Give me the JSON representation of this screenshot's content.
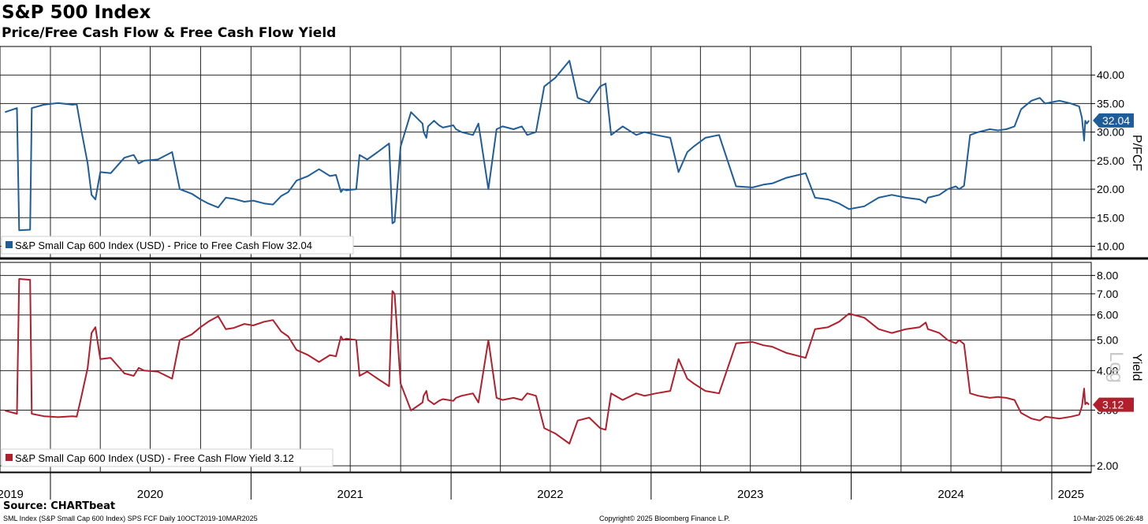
{
  "title": "S&P 500 Index",
  "subtitle": "Price/Free Cash Flow & Free Cash Flow Yield",
  "source": "Source: CHARTbeat",
  "footer": {
    "left": "SML Index (S&P Small Cap 600 Index) SPS FCF  Daily 10OCT2019-10MAR2025",
    "center": "Copyright© 2025 Bloomberg Finance L.P.",
    "right": "10-Mar-2025 06:26:48"
  },
  "chart_data": [
    {
      "type": "line",
      "title": "",
      "ylabel": "P/FCF",
      "ylim": [
        8,
        45
      ],
      "yticks": [
        "10.00",
        "15.00",
        "20.00",
        "25.00",
        "30.00",
        "35.00",
        "40.00"
      ],
      "last_value_label": "32.04",
      "color": "#1f5d9a",
      "series": [
        {
          "name": "S&P Small Cap 600 Index (USD) - Price to Free Cash Flow 32.04",
          "x": [
            "2019-10-10",
            "2019-11-01",
            "2019-11-05",
            "2019-11-25",
            "2019-11-28",
            "2019-12-20",
            "2020-01-15",
            "2020-02-10",
            "2020-02-18",
            "2020-02-26",
            "2020-03-09",
            "2020-03-16",
            "2020-03-23",
            "2020-04-01",
            "2020-04-20",
            "2020-05-15",
            "2020-06-01",
            "2020-06-10",
            "2020-06-20",
            "2020-07-15",
            "2020-08-10",
            "2020-08-24",
            "2020-09-15",
            "2020-10-01",
            "2020-10-15",
            "2020-11-02",
            "2020-11-16",
            "2020-12-01",
            "2020-12-20",
            "2021-01-05",
            "2021-01-25",
            "2021-02-10",
            "2021-02-25",
            "2021-03-10",
            "2021-03-25",
            "2021-04-15",
            "2021-05-05",
            "2021-05-25",
            "2021-06-05",
            "2021-06-14",
            "2021-06-18",
            "2021-06-24",
            "2021-07-12",
            "2021-07-18",
            "2021-08-01",
            "2021-08-20",
            "2021-09-10",
            "2021-09-16",
            "2021-09-20",
            "2021-10-01",
            "2021-10-20",
            "2021-11-10",
            "2021-11-12",
            "2021-11-17",
            "2021-11-20",
            "2021-12-01",
            "2021-12-10",
            "2021-12-17",
            "2022-01-05",
            "2022-01-10",
            "2022-01-20",
            "2022-02-10",
            "2022-02-20",
            "2022-03-10",
            "2022-03-25",
            "2022-04-05",
            "2022-04-25",
            "2022-05-10",
            "2022-05-20",
            "2022-06-05",
            "2022-06-20",
            "2022-07-10",
            "2022-08-05",
            "2022-08-20",
            "2022-09-10",
            "2022-09-30",
            "2022-10-10",
            "2022-10-20",
            "2022-11-10",
            "2022-12-05",
            "2022-12-20",
            "2023-01-10",
            "2023-02-05",
            "2023-02-20",
            "2023-03-08",
            "2023-03-20",
            "2023-04-10",
            "2023-05-05",
            "2023-06-05",
            "2023-07-05",
            "2023-07-25",
            "2023-08-10",
            "2023-09-05",
            "2023-10-10",
            "2023-10-27",
            "2023-11-20",
            "2023-12-10",
            "2023-12-28",
            "2024-01-25",
            "2024-02-20",
            "2024-03-15",
            "2024-04-10",
            "2024-05-05",
            "2024-05-16",
            "2024-05-20",
            "2024-06-10",
            "2024-06-25",
            "2024-07-10",
            "2024-07-16",
            "2024-07-25",
            "2024-08-05",
            "2024-08-20",
            "2024-09-10",
            "2024-09-25",
            "2024-10-10",
            "2024-10-25",
            "2024-11-06",
            "2024-11-25",
            "2024-12-10",
            "2024-12-20",
            "2025-01-15",
            "2025-02-05",
            "2025-02-20",
            "2025-02-25",
            "2025-03-01",
            "2025-03-03",
            "2025-03-06",
            "2025-03-10"
          ],
          "values": [
            33.5,
            34.2,
            12.8,
            12.9,
            34.2,
            34.8,
            35.1,
            34.8,
            34.9,
            30.5,
            24.5,
            19.0,
            18.2,
            23.0,
            22.8,
            25.5,
            26.0,
            24.5,
            25.0,
            25.2,
            26.5,
            20.0,
            19.2,
            18.2,
            17.5,
            16.8,
            18.5,
            18.3,
            17.8,
            18.0,
            17.5,
            17.3,
            18.8,
            19.5,
            21.5,
            22.3,
            23.5,
            22.3,
            22.5,
            19.5,
            20.0,
            19.8,
            20.0,
            26.0,
            25.2,
            26.5,
            28.0,
            14.0,
            14.3,
            27.5,
            33.5,
            31.5,
            30.0,
            29.0,
            31.0,
            32.0,
            31.2,
            30.8,
            31.2,
            30.5,
            30.0,
            29.5,
            31.5,
            20.0,
            30.5,
            31.0,
            30.5,
            31.0,
            29.5,
            30.0,
            38.0,
            39.5,
            42.5,
            36.0,
            35.2,
            38.0,
            38.5,
            29.5,
            31.0,
            29.5,
            30.0,
            29.5,
            29.0,
            23.0,
            26.5,
            27.5,
            29.0,
            29.5,
            20.5,
            20.3,
            20.8,
            21.0,
            22.0,
            22.8,
            18.5,
            18.2,
            17.5,
            16.5,
            17.0,
            18.5,
            19.0,
            18.5,
            18.2,
            17.6,
            18.5,
            19.0,
            20.0,
            20.5,
            20.0,
            20.6,
            29.5,
            30.0,
            30.5,
            30.3,
            30.5,
            31.0,
            34.0,
            35.5,
            36.0,
            35.0,
            35.5,
            35.0,
            34.5,
            32.5,
            28.5,
            32.0,
            31.5,
            32.04
          ]
        }
      ]
    },
    {
      "type": "line",
      "title": "",
      "ylabel": "Yield",
      "scale": "log",
      "scale_watermark": "Log",
      "ylim": [
        1.9,
        8.8
      ],
      "yticks": [
        "2.00",
        "3.00",
        "4.00",
        "5.00",
        "6.00",
        "7.00",
        "8.00"
      ],
      "last_value_label": "3.12",
      "color": "#b11f2c",
      "series": [
        {
          "name": "S&P Small Cap 600 Index (USD) - Free Cash Flow Yield 3.12",
          "x": [
            "2019-10-10",
            "2019-11-01",
            "2019-11-05",
            "2019-11-25",
            "2019-11-28",
            "2019-12-20",
            "2020-01-15",
            "2020-02-10",
            "2020-02-18",
            "2020-02-26",
            "2020-03-09",
            "2020-03-16",
            "2020-03-23",
            "2020-04-01",
            "2020-04-20",
            "2020-05-15",
            "2020-06-01",
            "2020-06-10",
            "2020-06-20",
            "2020-07-15",
            "2020-08-10",
            "2020-08-24",
            "2020-09-15",
            "2020-10-01",
            "2020-10-15",
            "2020-11-02",
            "2020-11-16",
            "2020-12-01",
            "2020-12-20",
            "2021-01-05",
            "2021-01-25",
            "2021-02-10",
            "2021-02-25",
            "2021-03-10",
            "2021-03-25",
            "2021-04-15",
            "2021-05-05",
            "2021-05-25",
            "2021-06-05",
            "2021-06-14",
            "2021-06-18",
            "2021-06-24",
            "2021-07-12",
            "2021-07-18",
            "2021-08-01",
            "2021-08-20",
            "2021-09-10",
            "2021-09-16",
            "2021-09-20",
            "2021-10-01",
            "2021-10-20",
            "2021-11-10",
            "2021-11-12",
            "2021-11-17",
            "2021-11-20",
            "2021-12-01",
            "2021-12-10",
            "2021-12-17",
            "2022-01-05",
            "2022-01-10",
            "2022-01-20",
            "2022-02-10",
            "2022-02-20",
            "2022-03-10",
            "2022-03-25",
            "2022-04-05",
            "2022-04-25",
            "2022-05-10",
            "2022-05-20",
            "2022-06-05",
            "2022-06-20",
            "2022-07-10",
            "2022-08-05",
            "2022-08-20",
            "2022-09-10",
            "2022-09-30",
            "2022-10-10",
            "2022-10-20",
            "2022-11-10",
            "2022-12-05",
            "2022-12-20",
            "2023-01-10",
            "2023-02-05",
            "2023-02-20",
            "2023-03-08",
            "2023-03-20",
            "2023-04-10",
            "2023-05-05",
            "2023-06-05",
            "2023-07-05",
            "2023-07-25",
            "2023-08-10",
            "2023-09-05",
            "2023-10-10",
            "2023-10-27",
            "2023-11-20",
            "2023-12-10",
            "2023-12-28",
            "2024-01-25",
            "2024-02-20",
            "2024-03-15",
            "2024-04-10",
            "2024-05-05",
            "2024-05-16",
            "2024-05-20",
            "2024-06-10",
            "2024-06-25",
            "2024-07-10",
            "2024-07-16",
            "2024-07-25",
            "2024-08-05",
            "2024-08-20",
            "2024-09-10",
            "2024-09-25",
            "2024-10-10",
            "2024-10-25",
            "2024-11-06",
            "2024-11-25",
            "2024-12-10",
            "2024-12-20",
            "2025-01-15",
            "2025-02-05",
            "2025-02-20",
            "2025-02-25",
            "2025-03-01",
            "2025-03-03",
            "2025-03-06",
            "2025-03-10"
          ],
          "values": [
            2.99,
            2.92,
            7.8,
            7.75,
            2.92,
            2.87,
            2.85,
            2.87,
            2.86,
            3.28,
            4.08,
            5.26,
            5.49,
            4.35,
            4.39,
            3.92,
            3.85,
            4.08,
            4.0,
            3.97,
            3.77,
            5.0,
            5.21,
            5.49,
            5.71,
            5.95,
            5.41,
            5.46,
            5.62,
            5.56,
            5.71,
            5.78,
            5.32,
            5.13,
            4.65,
            4.48,
            4.26,
            4.48,
            4.44,
            5.13,
            5.0,
            5.05,
            5.0,
            3.85,
            3.97,
            3.77,
            3.57,
            7.14,
            6.99,
            3.64,
            2.99,
            3.17,
            3.33,
            3.45,
            3.23,
            3.13,
            3.21,
            3.25,
            3.21,
            3.28,
            3.33,
            3.39,
            3.17,
            5.0,
            3.28,
            3.23,
            3.28,
            3.23,
            3.39,
            3.33,
            2.63,
            2.53,
            2.35,
            2.78,
            2.84,
            2.63,
            2.6,
            3.39,
            3.23,
            3.39,
            3.33,
            3.39,
            3.45,
            4.35,
            3.77,
            3.64,
            3.45,
            3.39,
            4.88,
            4.93,
            4.81,
            4.76,
            4.55,
            4.39,
            5.41,
            5.49,
            5.71,
            6.06,
            5.88,
            5.41,
            5.26,
            5.41,
            5.49,
            5.68,
            5.41,
            5.26,
            5.0,
            4.88,
            5.0,
            4.85,
            3.39,
            3.33,
            3.28,
            3.3,
            3.28,
            3.23,
            2.94,
            2.82,
            2.78,
            2.86,
            2.82,
            2.86,
            2.9,
            3.08,
            3.51,
            3.13,
            3.17,
            3.12
          ]
        }
      ]
    }
  ],
  "x_axis": {
    "labels": [
      "2019",
      "2020",
      "2021",
      "2022",
      "2023",
      "2024",
      "2025"
    ]
  }
}
